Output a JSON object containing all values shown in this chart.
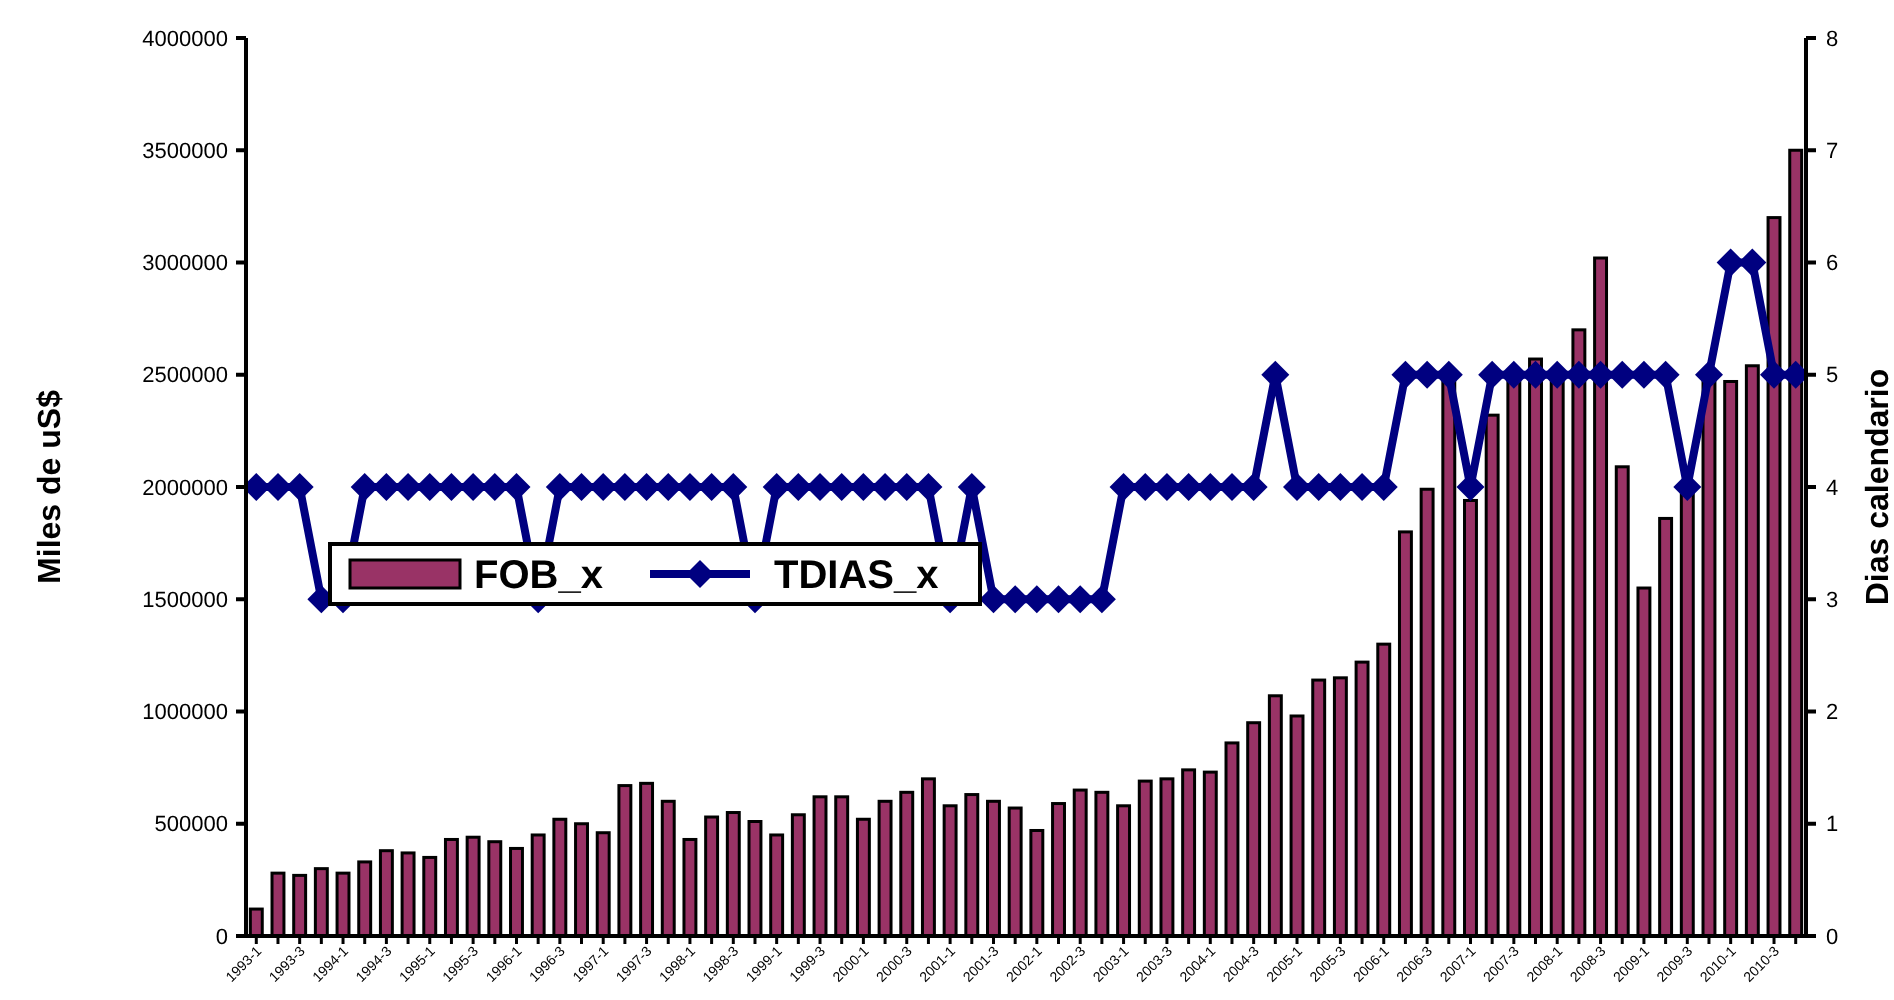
{
  "chart_data": {
    "type": "bar",
    "ylabel": "Miles de uS$",
    "y2label": "Dias calendario",
    "categories": [
      "1993-1",
      null,
      "1993-3",
      null,
      "1994-1",
      null,
      "1994-3",
      null,
      "1995-1",
      null,
      "1995-3",
      null,
      "1996-1",
      null,
      "1996-3",
      null,
      "1997-1",
      null,
      "1997-3",
      null,
      "1998-1",
      null,
      "1998-3",
      null,
      "1999-1",
      null,
      "1999-3",
      null,
      "2000-1",
      null,
      "2000-3",
      null,
      "2001-1",
      null,
      "2001-3",
      null,
      "2002-1",
      null,
      "2002-3",
      null,
      "2003-1",
      null,
      "2003-3",
      null,
      "2004-1",
      null,
      "2004-3",
      null,
      "2005-1",
      null,
      "2005-3",
      null,
      "2006-1",
      null,
      "2006-3",
      null,
      "2007-1",
      null,
      "2007-3",
      null,
      "2008-1",
      null,
      "2008-3",
      null,
      "2009-1",
      null,
      "2009-3",
      null,
      "2010-1",
      null,
      "2010-3",
      null
    ],
    "series": [
      {
        "name": "FOB_x",
        "color": "#993366",
        "values": [
          120000,
          280000,
          270000,
          300000,
          280000,
          330000,
          380000,
          370000,
          350000,
          430000,
          440000,
          420000,
          390000,
          450000,
          520000,
          500000,
          460000,
          670000,
          680000,
          600000,
          430000,
          530000,
          550000,
          510000,
          450000,
          540000,
          620000,
          620000,
          520000,
          600000,
          640000,
          700000,
          580000,
          630000,
          600000,
          570000,
          470000,
          590000,
          650000,
          640000,
          580000,
          690000,
          700000,
          740000,
          730000,
          860000,
          950000,
          1070000,
          980000,
          1140000,
          1150000,
          1220000,
          1300000,
          1800000,
          1990000,
          2480000,
          1940000,
          2320000,
          2480000,
          2570000,
          2480000,
          2700000,
          3020000,
          2090000,
          1550000,
          1860000,
          2000000,
          2500000,
          2470000,
          2540000,
          3200000,
          3500000
        ]
      },
      {
        "name": "TDIAS_x",
        "type": "line",
        "axis": "y2",
        "color": "#000080",
        "marker": "diamond",
        "values": [
          4,
          4,
          4,
          3,
          3,
          4,
          4,
          4,
          4,
          4,
          4,
          4,
          4,
          3,
          4,
          4,
          4,
          4,
          4,
          4,
          4,
          4,
          4,
          3,
          4,
          4,
          4,
          4,
          4,
          4,
          4,
          4,
          3,
          4,
          3,
          3,
          3,
          3,
          3,
          3,
          4,
          4,
          4,
          4,
          4,
          4,
          4,
          5,
          4,
          4,
          4,
          4,
          4,
          5,
          5,
          5,
          4,
          5,
          5,
          5,
          5,
          5,
          5,
          5,
          5,
          5,
          4,
          5,
          6,
          6,
          5,
          5
        ]
      }
    ],
    "ylim": [
      0,
      4000000
    ],
    "yticks": [
      0,
      500000,
      1000000,
      1500000,
      2000000,
      2500000,
      3000000,
      3500000,
      4000000
    ],
    "y2lim": [
      0,
      8
    ],
    "y2ticks": [
      0,
      1,
      2,
      3,
      4,
      5,
      6,
      7,
      8
    ],
    "legend": "left",
    "grid": false
  }
}
